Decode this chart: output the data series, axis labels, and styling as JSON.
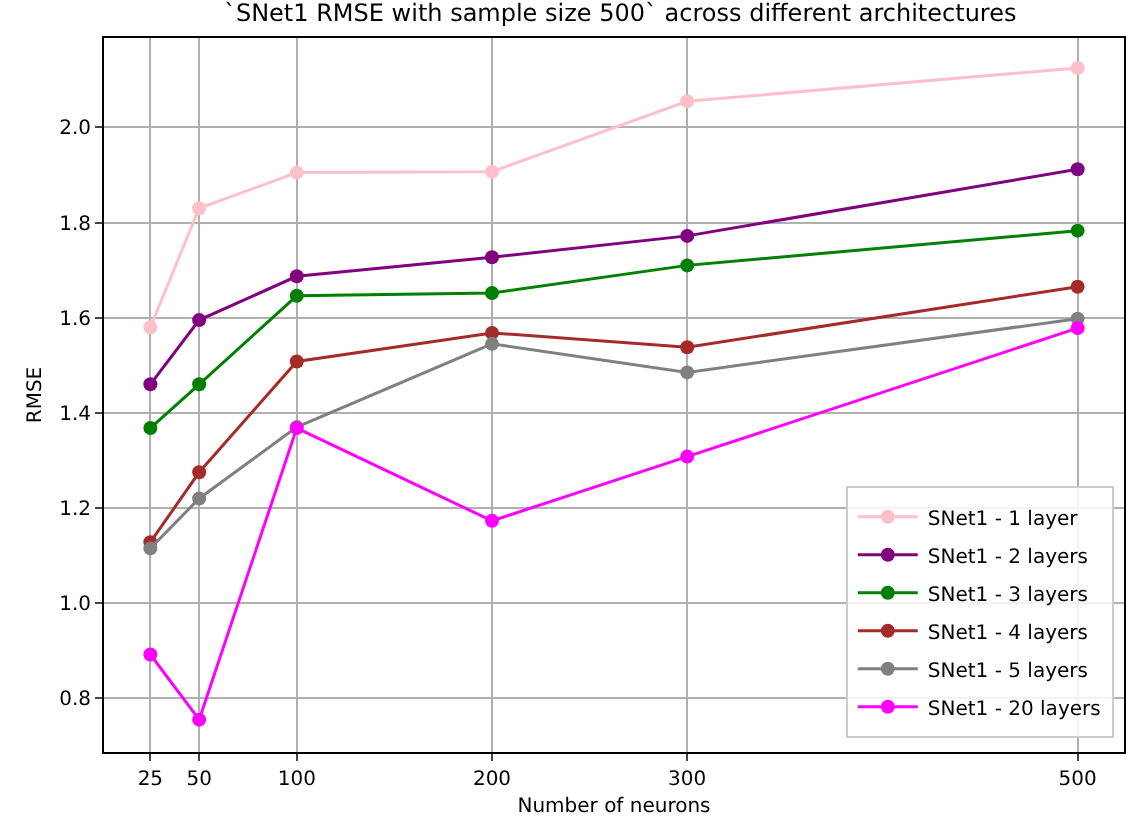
{
  "chart_data": {
    "type": "line",
    "title": "`SNet1 RMSE with sample size 500` across different architectures",
    "xlabel": "Number of neurons",
    "ylabel": "RMSE",
    "x": [
      25,
      50,
      100,
      200,
      300,
      500
    ],
    "series": [
      {
        "name": "SNet1 - 1 layer",
        "color": "#ffc0cb",
        "values": [
          1.58,
          1.83,
          1.905,
          1.907,
          2.055,
          2.125
        ]
      },
      {
        "name": "SNet1 - 2 layers",
        "color": "#800080",
        "values": [
          1.46,
          1.595,
          1.687,
          1.727,
          1.772,
          1.912
        ]
      },
      {
        "name": "SNet1 - 3 layers",
        "color": "#008000",
        "values": [
          1.368,
          1.46,
          1.646,
          1.652,
          1.71,
          1.783
        ]
      },
      {
        "name": "SNet1 - 4 layers",
        "color": "#a52a2a",
        "values": [
          1.128,
          1.275,
          1.508,
          1.568,
          1.538,
          1.665
        ]
      },
      {
        "name": "SNet1 - 5 layers",
        "color": "#808080",
        "values": [
          1.115,
          1.22,
          1.37,
          1.545,
          1.485,
          1.598
        ]
      },
      {
        "name": "SNet1 - 20 layers",
        "color": "#ff00ff",
        "values": [
          0.892,
          0.755,
          1.368,
          1.173,
          1.308,
          1.578
        ]
      }
    ],
    "xlim": [
      1.25,
      523.75
    ],
    "xticks": [
      25,
      50,
      100,
      200,
      300,
      500
    ],
    "ylim": [
      0.687,
      2.188
    ],
    "yticks": [
      {
        "value": 0.8,
        "label": "0.8"
      },
      {
        "value": 1.0,
        "label": "1.0"
      },
      {
        "value": 1.2,
        "label": "1.2"
      },
      {
        "value": 1.4,
        "label": "1.4"
      },
      {
        "value": 1.6,
        "label": "1.6"
      },
      {
        "value": 1.8,
        "label": "1.8"
      },
      {
        "value": 2.0,
        "label": "2.0"
      }
    ],
    "grid": true,
    "legend": "bottom right",
    "marker": "circle",
    "line_style": "solid"
  }
}
